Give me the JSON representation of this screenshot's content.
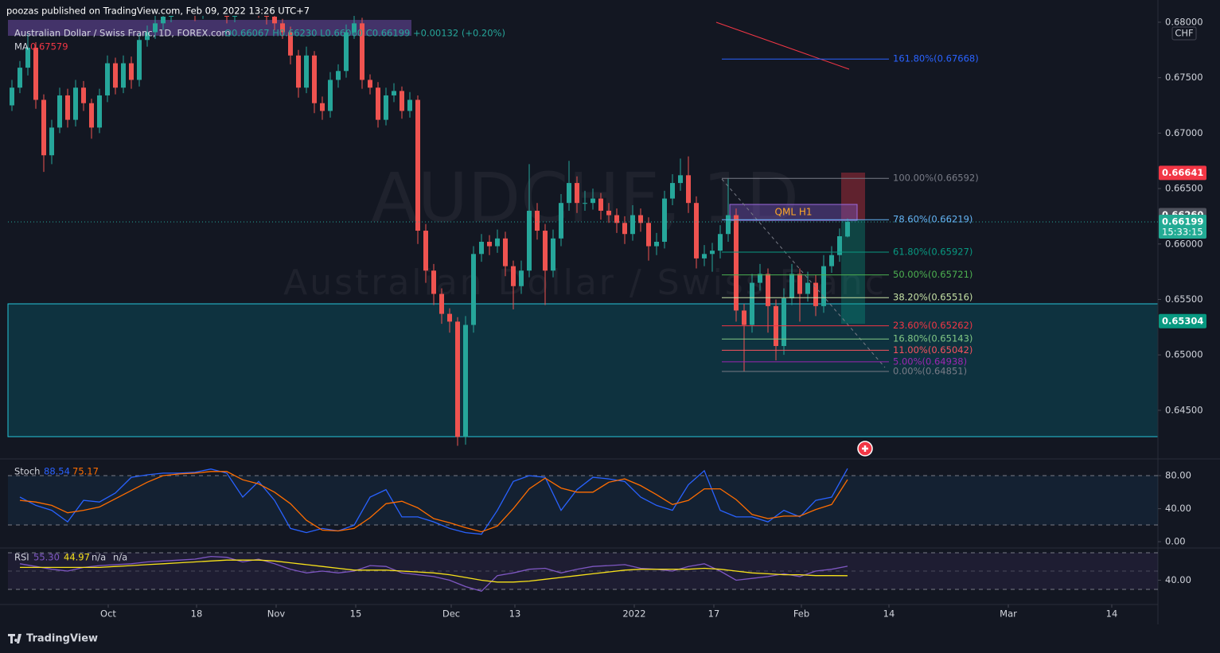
{
  "header": "poozas published on TradingView.com, Feb 09, 2022 13:26 UTC+7",
  "footer": "TradingView",
  "chart_data": [
    {
      "type": "candlestick",
      "title": "Australian Dollar / Swiss Franc, 1D, FOREX.com",
      "ohlc_legend": "O0.66067 H0.66230 L0.66060 C0.66199 +0.00132 (+0.20%)",
      "ma_label": "MA",
      "ma_value": 0.67579,
      "watermark": "AUDCHF, 1D",
      "watermark_subtitle": "Australian Dollar / Swiss Franc",
      "currency": "CHF",
      "annotation": "QML H1",
      "up_color": "#26a69a",
      "down_color": "#ef5350",
      "candles": [
        [
          0.6725,
          0.6748,
          0.672,
          0.6741
        ],
        [
          0.6741,
          0.6765,
          0.6736,
          0.6759
        ],
        [
          0.6759,
          0.679,
          0.6752,
          0.6777
        ],
        [
          0.6777,
          0.6782,
          0.6722,
          0.673
        ],
        [
          0.673,
          0.6735,
          0.6665,
          0.668
        ],
        [
          0.668,
          0.6712,
          0.6672,
          0.6705
        ],
        [
          0.6705,
          0.6741,
          0.67,
          0.6734
        ],
        [
          0.6734,
          0.674,
          0.6705,
          0.6712
        ],
        [
          0.6712,
          0.6748,
          0.6706,
          0.6741
        ],
        [
          0.6741,
          0.6747,
          0.672,
          0.6727
        ],
        [
          0.6727,
          0.6731,
          0.6695,
          0.6705
        ],
        [
          0.6705,
          0.674,
          0.67,
          0.6734
        ],
        [
          0.6734,
          0.677,
          0.6728,
          0.6763
        ],
        [
          0.6763,
          0.6768,
          0.6735,
          0.6741
        ],
        [
          0.6741,
          0.677,
          0.6736,
          0.6763
        ],
        [
          0.6763,
          0.6769,
          0.674,
          0.6748
        ],
        [
          0.6748,
          0.679,
          0.6742,
          0.6784
        ],
        [
          0.6784,
          0.6797,
          0.6778,
          0.6791
        ],
        [
          0.6791,
          0.6806,
          0.6785,
          0.6799
        ],
        [
          0.6799,
          0.6811,
          0.6793,
          0.6805
        ],
        [
          0.6805,
          0.6818,
          0.68,
          0.6812
        ],
        [
          0.6812,
          0.6826,
          0.6806,
          0.682
        ],
        [
          0.682,
          0.6825,
          0.6809,
          0.6815
        ],
        [
          0.6815,
          0.682,
          0.6801,
          0.6808
        ],
        [
          0.6808,
          0.6823,
          0.6803,
          0.6818
        ],
        [
          0.6818,
          0.6831,
          0.6812,
          0.6825
        ],
        [
          0.6825,
          0.6829,
          0.6809,
          0.6815
        ],
        [
          0.6815,
          0.682,
          0.6799,
          0.6805
        ],
        [
          0.6805,
          0.6818,
          0.68,
          0.6812
        ],
        [
          0.6812,
          0.6826,
          0.6806,
          0.682
        ],
        [
          0.682,
          0.6825,
          0.6812,
          0.6818
        ],
        [
          0.6818,
          0.6822,
          0.6804,
          0.681
        ],
        [
          0.681,
          0.6815,
          0.6798,
          0.6805
        ],
        [
          0.6805,
          0.681,
          0.6793,
          0.6799
        ],
        [
          0.6799,
          0.6803,
          0.6785,
          0.6791
        ],
        [
          0.6791,
          0.6796,
          0.6762,
          0.677
        ],
        [
          0.677,
          0.6775,
          0.6732,
          0.6741
        ],
        [
          0.6741,
          0.6778,
          0.6736,
          0.677
        ],
        [
          0.677,
          0.6774,
          0.6718,
          0.6727
        ],
        [
          0.6727,
          0.6733,
          0.6712,
          0.672
        ],
        [
          0.672,
          0.6755,
          0.6714,
          0.6748
        ],
        [
          0.6748,
          0.6762,
          0.6741,
          0.6756
        ],
        [
          0.6756,
          0.6798,
          0.675,
          0.6791
        ],
        [
          0.6791,
          0.6806,
          0.6785,
          0.6799
        ],
        [
          0.6799,
          0.6804,
          0.674,
          0.6748
        ],
        [
          0.6748,
          0.6753,
          0.6735,
          0.6741
        ],
        [
          0.6741,
          0.6746,
          0.6705,
          0.6712
        ],
        [
          0.6712,
          0.6741,
          0.6707,
          0.6734
        ],
        [
          0.6734,
          0.6745,
          0.6728,
          0.6738
        ],
        [
          0.6738,
          0.6742,
          0.6713,
          0.672
        ],
        [
          0.672,
          0.6737,
          0.6714,
          0.673
        ],
        [
          0.673,
          0.6734,
          0.66,
          0.6612
        ],
        [
          0.6612,
          0.6618,
          0.6565,
          0.6576
        ],
        [
          0.6576,
          0.6582,
          0.6545,
          0.6555
        ],
        [
          0.6555,
          0.656,
          0.6528,
          0.6537
        ],
        [
          0.6537,
          0.6542,
          0.652,
          0.653
        ],
        [
          0.653,
          0.6534,
          0.6418,
          0.6426
        ],
        [
          0.6426,
          0.6535,
          0.6419,
          0.6527
        ],
        [
          0.6527,
          0.6598,
          0.652,
          0.6591
        ],
        [
          0.6591,
          0.6609,
          0.6584,
          0.6602
        ],
        [
          0.6602,
          0.6608,
          0.659,
          0.6598
        ],
        [
          0.6598,
          0.6613,
          0.6592,
          0.6605
        ],
        [
          0.6605,
          0.6611,
          0.6571,
          0.658
        ],
        [
          0.658,
          0.6585,
          0.6541,
          0.6562
        ],
        [
          0.6562,
          0.6585,
          0.6555,
          0.6576
        ],
        [
          0.6576,
          0.6672,
          0.657,
          0.663
        ],
        [
          0.663,
          0.6637,
          0.6604,
          0.6612
        ],
        [
          0.6612,
          0.6618,
          0.6545,
          0.6576
        ],
        [
          0.6576,
          0.6613,
          0.657,
          0.6605
        ],
        [
          0.6605,
          0.6645,
          0.6598,
          0.6637
        ],
        [
          0.6637,
          0.6675,
          0.663,
          0.6655
        ],
        [
          0.6655,
          0.6661,
          0.6628,
          0.6637
        ],
        [
          0.6637,
          0.6648,
          0.663,
          0.6637
        ],
        [
          0.6637,
          0.665,
          0.6631,
          0.6641
        ],
        [
          0.6641,
          0.6646,
          0.6622,
          0.663
        ],
        [
          0.663,
          0.6637,
          0.6619,
          0.6626
        ],
        [
          0.6626,
          0.6632,
          0.661,
          0.6619
        ],
        [
          0.6619,
          0.6625,
          0.66,
          0.6609
        ],
        [
          0.6609,
          0.6635,
          0.6603,
          0.6626
        ],
        [
          0.6626,
          0.6632,
          0.6611,
          0.6619
        ],
        [
          0.6619,
          0.6624,
          0.6585,
          0.6598
        ],
        [
          0.6598,
          0.661,
          0.659,
          0.6602
        ],
        [
          0.6602,
          0.6648,
          0.6596,
          0.6641
        ],
        [
          0.6641,
          0.6663,
          0.6635,
          0.6655
        ],
        [
          0.6655,
          0.6677,
          0.6648,
          0.6662
        ],
        [
          0.6662,
          0.6679,
          0.6628,
          0.6637
        ],
        [
          0.6637,
          0.6643,
          0.6578,
          0.6587
        ],
        [
          0.6587,
          0.6599,
          0.658,
          0.6591
        ],
        [
          0.6591,
          0.6601,
          0.6575,
          0.6594
        ],
        [
          0.6594,
          0.6617,
          0.6587,
          0.6609
        ],
        [
          0.6609,
          0.6659,
          0.6602,
          0.6626
        ],
        [
          0.6626,
          0.6632,
          0.653,
          0.654
        ],
        [
          0.654,
          0.6546,
          0.6485,
          0.6527
        ],
        [
          0.6527,
          0.6573,
          0.652,
          0.6565
        ],
        [
          0.6565,
          0.6582,
          0.6558,
          0.6573
        ],
        [
          0.6573,
          0.6578,
          0.652,
          0.6544
        ],
        [
          0.6544,
          0.655,
          0.6495,
          0.6508
        ],
        [
          0.6508,
          0.656,
          0.65,
          0.6551
        ],
        [
          0.6551,
          0.6582,
          0.6545,
          0.6573
        ],
        [
          0.6573,
          0.6578,
          0.653,
          0.6555
        ],
        [
          0.6555,
          0.6575,
          0.6548,
          0.6565
        ],
        [
          0.6565,
          0.6572,
          0.6535,
          0.6544
        ],
        [
          0.6544,
          0.659,
          0.6538,
          0.658
        ],
        [
          0.658,
          0.6598,
          0.6574,
          0.659
        ],
        [
          0.659,
          0.6614,
          0.6584,
          0.6607
        ],
        [
          0.66067,
          0.6623,
          0.6606,
          0.66199
        ]
      ],
      "xlim": [
        -0.5,
        144
      ],
      "xticks": [
        {
          "value": 12.1,
          "label": "Oct"
        },
        {
          "value": 23.2,
          "label": "18"
        },
        {
          "value": 33.2,
          "label": "Nov"
        },
        {
          "value": 43.2,
          "label": "15"
        },
        {
          "value": 55.2,
          "label": "Dec"
        },
        {
          "value": 63.2,
          "label": "13"
        },
        {
          "value": 78.2,
          "label": "2022"
        },
        {
          "value": 88.2,
          "label": "17"
        },
        {
          "value": 99.2,
          "label": "Feb"
        },
        {
          "value": 110.2,
          "label": "14"
        },
        {
          "value": 125.2,
          "label": "Mar"
        },
        {
          "value": 138.2,
          "label": "14"
        }
      ],
      "ylim": [
        0.64076,
        0.68057
      ],
      "yticks": [
        {
          "value": 0.68,
          "label": "0.68000"
        },
        {
          "value": 0.675,
          "label": "0.67500"
        },
        {
          "value": 0.67,
          "label": "0.67000"
        },
        {
          "value": 0.665,
          "label": "0.66500"
        },
        {
          "value": 0.66,
          "label": "0.66000"
        },
        {
          "value": 0.655,
          "label": "0.65500"
        },
        {
          "value": 0.65,
          "label": "0.65000"
        },
        {
          "value": 0.645,
          "label": "0.64500"
        }
      ],
      "fib_levels": [
        {
          "value": 0.67668,
          "label": "161.80%(0.67668)",
          "color": "#2962ff"
        },
        {
          "value": 0.66592,
          "label": "100.00%(0.66592)",
          "color": "#787b86"
        },
        {
          "value": 0.66219,
          "label": "78.60%(0.66219)",
          "color": "#64b5f6"
        },
        {
          "value": 0.65927,
          "label": "61.80%(0.65927)",
          "color": "#089981"
        },
        {
          "value": 0.65721,
          "label": "50.00%(0.65721)",
          "color": "#4caf50"
        },
        {
          "value": 0.65516,
          "label": "38.20%(0.65516)",
          "color": "#c5e1a5"
        },
        {
          "value": 0.65262,
          "label": "23.60%(0.65262)",
          "color": "#f23645"
        },
        {
          "value": 0.65143,
          "label": "16.80%(0.65143)",
          "color": "#81c784"
        },
        {
          "value": 0.65042,
          "label": "11.00%(0.65042)",
          "color": "#f7525f"
        },
        {
          "value": 0.64938,
          "label": "5.00%(0.64938)",
          "color": "#9c27b0"
        },
        {
          "value": 0.64851,
          "label": "0.00%(0.64851)",
          "color": "#787b86"
        }
      ],
      "price_badges": [
        {
          "value": 0.66641,
          "label": "0.66641",
          "color": "#f23645"
        },
        {
          "value": 0.6626,
          "label": "0.66260",
          "color": "#50535e"
        },
        {
          "value": 0.66199,
          "label": "0.66199",
          "sublabel": "15:33:15",
          "color": "#22ab94"
        },
        {
          "value": 0.65304,
          "label": "0.65304",
          "color": "#089981"
        }
      ]
    },
    {
      "type": "line",
      "title": "Stoch",
      "x": [
        1,
        3,
        5,
        7,
        9,
        11,
        13,
        15,
        17,
        19,
        21,
        23,
        25,
        27,
        29,
        31,
        33,
        35,
        37,
        39,
        41,
        43,
        45,
        47,
        49,
        51,
        53,
        55,
        57,
        59,
        61,
        63,
        65,
        67,
        69,
        71,
        73,
        75,
        77,
        79,
        81,
        83,
        85,
        87,
        89,
        91,
        93,
        95,
        97,
        99,
        101,
        103,
        105
      ],
      "series": [
        {
          "color": "#2962ff",
          "values": [
            54,
            44,
            38,
            24,
            50,
            48,
            59,
            78,
            81,
            83,
            83,
            84,
            88,
            83,
            54,
            73,
            50,
            16,
            11,
            16,
            13,
            20,
            54,
            63,
            30,
            30,
            24,
            16,
            11,
            9,
            38,
            73,
            80,
            78,
            38,
            63,
            78,
            76,
            73,
            54,
            44,
            38,
            69,
            86,
            38,
            30,
            30,
            24,
            38,
            30,
            50,
            54,
            88.54
          ]
        },
        {
          "color": "#ff6d00",
          "values": [
            50,
            48,
            44,
            35,
            38,
            42,
            52,
            62,
            72,
            80,
            82,
            83,
            85,
            85,
            75,
            70,
            60,
            46,
            26,
            14,
            13,
            16,
            29,
            46,
            49,
            41,
            28,
            23,
            17,
            12,
            19,
            40,
            64,
            77,
            65,
            60,
            60,
            72,
            76,
            68,
            57,
            45,
            50,
            64,
            64,
            51,
            33,
            28,
            31,
            31,
            39,
            45,
            75.17
          ]
        }
      ],
      "ylim": [
        -6.7,
        98.3
      ],
      "yticks": [
        {
          "value": 80,
          "label": "80.00"
        },
        {
          "value": 40,
          "label": "40.00"
        },
        {
          "value": 0,
          "label": "0.00"
        }
      ]
    },
    {
      "type": "line",
      "title": "RSI",
      "legend_values": [
        "55.30",
        "44.97",
        "n/a",
        "n/a"
      ],
      "x": [
        1,
        3,
        5,
        7,
        9,
        11,
        13,
        15,
        17,
        19,
        21,
        23,
        25,
        27,
        29,
        31,
        33,
        35,
        37,
        39,
        41,
        43,
        45,
        47,
        49,
        51,
        53,
        55,
        57,
        59,
        61,
        63,
        65,
        67,
        69,
        71,
        73,
        75,
        77,
        79,
        81,
        83,
        85,
        87,
        89,
        91,
        93,
        95,
        97,
        99,
        101,
        103,
        105
      ],
      "series": [
        {
          "color": "#7e57c2",
          "values": [
            58,
            55,
            52,
            50,
            54,
            56,
            57,
            58,
            60,
            61,
            62,
            63,
            66,
            65,
            60,
            63,
            58,
            52,
            48,
            50,
            48,
            50,
            56,
            55,
            48,
            46,
            44,
            40,
            33,
            28,
            45,
            48,
            52,
            53,
            48,
            52,
            55,
            56,
            57,
            53,
            52,
            50,
            55,
            58,
            50,
            40,
            42,
            44,
            47,
            44,
            50,
            52,
            55.3
          ]
        },
        {
          "color": "#f7e11a",
          "values": [
            54,
            54,
            54,
            54,
            54,
            54,
            55,
            56,
            57,
            58,
            59,
            60,
            61,
            62,
            62,
            62,
            61,
            59,
            57,
            55,
            53,
            51,
            51,
            51,
            50,
            49,
            48,
            46,
            43,
            40,
            38,
            38,
            39,
            41,
            43,
            45,
            47,
            49,
            51,
            52,
            52,
            52,
            52,
            53,
            52,
            50,
            48,
            47,
            46,
            46,
            45,
            45,
            44.97
          ]
        }
      ],
      "ylim": [
        13.5,
        74.3
      ],
      "yticks": [
        {
          "value": 40,
          "label": "40.00"
        }
      ]
    }
  ]
}
